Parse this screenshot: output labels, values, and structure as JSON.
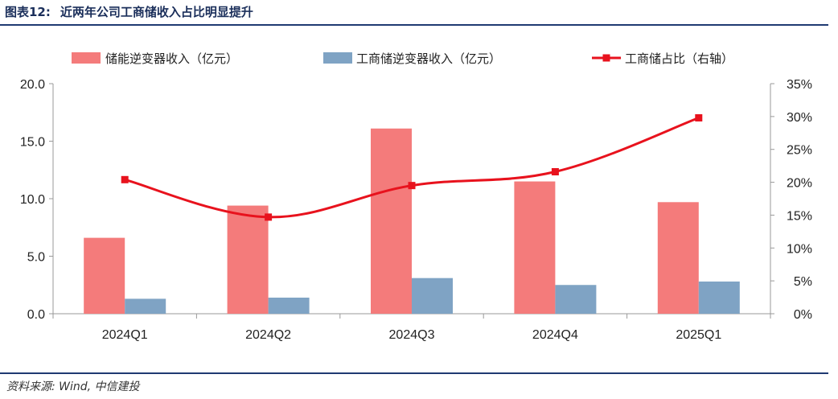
{
  "header": {
    "figure_no": "图表12:",
    "title": "近两年公司工商储收入占比明显提升"
  },
  "footer": {
    "source": "资料来源: Wind, 中信建投"
  },
  "colors": {
    "bar1": "#F47B7B",
    "bar2": "#7FA3C4",
    "line": "#E8121D",
    "rule": "#1f3a72"
  },
  "chart_data": {
    "type": "bar",
    "categories": [
      "2024Q1",
      "2024Q2",
      "2024Q3",
      "2024Q4",
      "2025Q1"
    ],
    "series": [
      {
        "name": "储能逆变器收入（亿元）",
        "type": "bar",
        "axis": "left",
        "values": [
          6.6,
          9.4,
          16.1,
          11.5,
          9.7
        ]
      },
      {
        "name": "工商储逆变器收入（亿元）",
        "type": "bar",
        "axis": "left",
        "values": [
          1.3,
          1.4,
          3.1,
          2.5,
          2.8
        ]
      },
      {
        "name": "工商储占比（右轴）",
        "type": "line",
        "axis": "right",
        "values": [
          20.4,
          14.7,
          19.5,
          21.6,
          29.8
        ]
      }
    ],
    "y_left": {
      "min": 0,
      "max": 20,
      "ticks": [
        "0.0",
        "5.0",
        "10.0",
        "15.0",
        "20.0"
      ]
    },
    "y_right": {
      "min": 0,
      "max": 35,
      "ticks": [
        "0%",
        "5%",
        "10%",
        "15%",
        "20%",
        "25%",
        "30%",
        "35%"
      ]
    },
    "grid": false,
    "legend": "top"
  }
}
